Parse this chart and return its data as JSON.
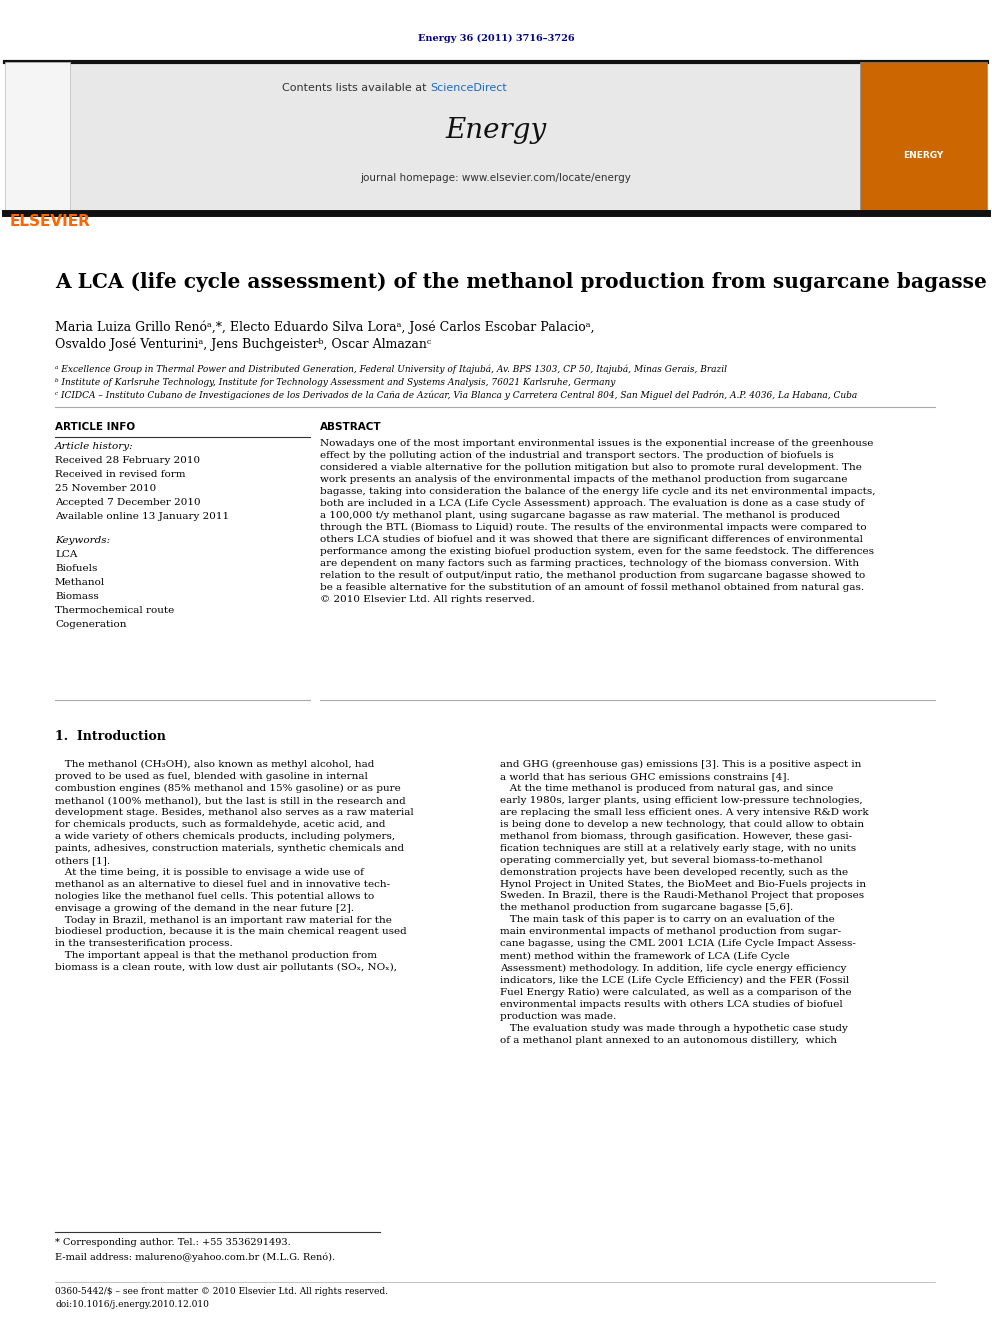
{
  "page_width": 9.92,
  "page_height": 13.23,
  "dpi": 100,
  "bg_color": "#ffffff",
  "top_citation": "Energy 36 (2011) 3716–3726",
  "citation_color": "#00008B",
  "journal_header_bg": "#e8e8e8",
  "header_text_contents": "Contents lists available at",
  "header_sciencedirect": "ScienceDirect",
  "header_sciencedirect_color": "#1a6bc1",
  "journal_name": "Energy",
  "journal_homepage": "journal homepage: www.elsevier.com/locate/energy",
  "elsevier_color": "#ff6600",
  "black_bar_color": "#1a1a1a",
  "article_title": "A LCA (life cycle assessment) of the methanol production from sugarcane bagasse",
  "authors_line1": "Maria Luiza Grillo Renóᵃ,*, Electo Eduardo Silva Loraᵃ, José Carlos Escobar Palacioᵃ,",
  "authors_line2": "Osvaldo José Venturiniᵃ, Jens Buchgeisterᵇ, Oscar Almazanᶜ",
  "affil_a": "ᵃ Excellence Group in Thermal Power and Distributed Generation, Federal University of Itajubá, Av. BPS 1303, CP 50, Itajubá, Minas Gerais, Brazil",
  "affil_b": "ᵇ Institute of Karlsruhe Technology, Institute for Technology Assessment and Systems Analysis, 76021 Karlsruhe, Germany",
  "affil_c": "ᶜ ICIDCA – Instituto Cubano de Investigaciones de los Derivados de la Caña de Azúcar, Via Blanca y Carretera Central 804, San Miguel del Padrón, A.P. 4036, La Habana, Cuba",
  "article_info_title": "ARTICLE INFO",
  "article_history_label": "Article history:",
  "received": "Received 28 February 2010",
  "received_revised1": "Received in revised form",
  "received_revised2": "25 November 2010",
  "accepted": "Accepted 7 December 2010",
  "available": "Available online 13 January 2011",
  "keywords_label": "Keywords:",
  "keywords": [
    "LCA",
    "Biofuels",
    "Methanol",
    "Biomass",
    "Thermochemical route",
    "Cogeneration"
  ],
  "abstract_title": "ABSTRACT",
  "abstract_text": "Nowadays one of the most important environmental issues is the exponential increase of the greenhouse\neffect by the polluting action of the industrial and transport sectors. The production of biofuels is\nconsidered a viable alternative for the pollution mitigation but also to promote rural development. The\nwork presents an analysis of the environmental impacts of the methanol production from sugarcane\nbagasse, taking into consideration the balance of the energy life cycle and its net environmental impacts,\nboth are included in a LCA (Life Cycle Assessment) approach. The evaluation is done as a case study of\na 100,000 t/y methanol plant, using sugarcane bagasse as raw material. The methanol is produced\nthrough the BTL (Biomass to Liquid) route. The results of the environmental impacts were compared to\nothers LCA studies of biofuel and it was showed that there are significant differences of environmental\nperformance among the existing biofuel production system, even for the same feedstock. The differences\nare dependent on many factors such as farming practices, technology of the biomass conversion. With\nrelation to the result of output/input ratio, the methanol production from sugarcane bagasse showed to\nbe a feasible alternative for the substitution of an amount of fossil methanol obtained from natural gas.\n© 2010 Elsevier Ltd. All rights reserved.",
  "intro_title": "1.  Introduction",
  "intro_left": "   The methanol (CH₃OH), also known as methyl alcohol, had\nproved to be used as fuel, blended with gasoline in internal\ncombustion engines (85% methanol and 15% gasoline) or as pure\nmethanol (100% methanol), but the last is still in the research and\ndevelopment stage. Besides, methanol also serves as a raw material\nfor chemicals products, such as formaldehyde, acetic acid, and\na wide variety of others chemicals products, including polymers,\npaints, adhesives, construction materials, synthetic chemicals and\nothers [1].\n   At the time being, it is possible to envisage a wide use of\nmethanol as an alternative to diesel fuel and in innovative tech-\nnologies like the methanol fuel cells. This potential allows to\nenvisage a growing of the demand in the near future [2].\n   Today in Brazil, methanol is an important raw material for the\nbiodiesel production, because it is the main chemical reagent used\nin the transesterification process.\n   The important appeal is that the methanol production from\nbiomass is a clean route, with low dust air pollutants (SOₓ, NOₓ),",
  "intro_right": "and GHG (greenhouse gas) emissions [3]. This is a positive aspect in\na world that has serious GHC emissions constrains [4].\n   At the time methanol is produced from natural gas, and since\nearly 1980s, larger plants, using efficient low-pressure technologies,\nare replacing the small less efficient ones. A very intensive R&D work\nis being done to develop a new technology, that could allow to obtain\nmethanol from biomass, through gasification. However, these gasi-\nfication techniques are still at a relatively early stage, with no units\noperating commercially yet, but several biomass-to-methanol\ndemonstration projects have been developed recently, such as the\nHynol Project in United States, the BioMeet and Bio-Fuels projects in\nSweden. In Brazil, there is the Raudi-Methanol Project that proposes\nthe methanol production from sugarcane bagasse [5,6].\n   The main task of this paper is to carry on an evaluation of the\nmain environmental impacts of methanol production from sugar-\ncane bagasse, using the CML 2001 LCIA (Life Cycle Impact Assess-\nment) method within the framework of LCA (Life Cycle\nAssessment) methodology. In addition, life cycle energy efficiency\nindicators, like the LCE (Life Cycle Efficiency) and the FER (Fossil\nFuel Energy Ratio) were calculated, as well as a comparison of the\nenvironmental impacts results with others LCA studies of biofuel\nproduction was made.\n   The evaluation study was made through a hypothetic case study\nof a methanol plant annexed to an autonomous distillery,  which",
  "footnote_asterisk": "* Corresponding author. Tel.: +55 3536291493.",
  "footnote_email": "E-mail address: malureno@yahoo.com.br (M.L.G. Renó).",
  "footnote_issn": "0360-5442/$ – see front matter © 2010 Elsevier Ltd. All rights reserved.",
  "footnote_doi": "doi:10.1016/j.energy.2010.12.010"
}
